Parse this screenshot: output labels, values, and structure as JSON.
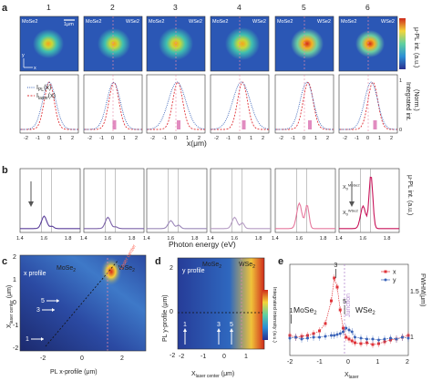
{
  "labels": {
    "a": "a",
    "b": "b",
    "c": "c",
    "d": "d",
    "e": "e"
  },
  "panel_a": {
    "column_numbers": [
      "1",
      "2",
      "3",
      "4",
      "5",
      "6"
    ],
    "material_left": "MoSe",
    "material_right": "WSe",
    "subscript": "2",
    "scalebar": "1μm",
    "axis_y": "y",
    "axis_x": "x",
    "axis_sub": "1",
    "legend_pl": "I",
    "legend_pl_sub": "PL",
    "legend_laser": "I",
    "legend_laser_sub": "laser",
    "legend_arg": "(x)",
    "xlabel": "x(μm)",
    "colorbar_label": "μ-PL int. (a.u.)",
    "profile_label_top": "Integrated int.",
    "profile_label_bot": "(Norm.)",
    "yticks": [
      "1",
      "0"
    ],
    "xticks": [
      "-2",
      "-1",
      "0",
      "1",
      "2"
    ]
  },
  "panel_b": {
    "xlabel": "Photon energy (eV)",
    "ylabel": "μ-PL int. (a.u.)",
    "xticks": [
      "1.4",
      "1.6",
      "1.8"
    ],
    "marker_label_top": "X",
    "marker_label_bot": "X",
    "marker_sub_top": "0",
    "marker_sub_bot": "0",
    "marker_sup_top": "MoSe2",
    "marker_sup_bot": "WSe2",
    "colors": [
      "#5b3f9b",
      "#7d63a9",
      "#9c88b9",
      "#b59cc4",
      "#e6789d",
      "#c8145a"
    ]
  },
  "panel_c": {
    "title": "x profile",
    "material_left": "MoSe",
    "material_right": "WSe",
    "subscript": "2",
    "ylabel": "X",
    "ylabel_sub": "laser center",
    "ylabel_unit": " (μm)",
    "xlabel": "PL x-profile (μm)",
    "laser_center": "Laser center",
    "arrows": [
      "5",
      "3",
      "1"
    ],
    "xticks": [
      "-2",
      "0",
      "2"
    ],
    "yticks": [
      "2",
      "1",
      "0",
      "-1",
      "-2"
    ]
  },
  "panel_d": {
    "title": "y profile",
    "material_left": "MoSe",
    "material_right": "WSe",
    "subscript": "2",
    "ylabel": "PL y-profile (μm)",
    "xlabel": "X",
    "xlabel_sub": "laser center",
    "xlabel_unit": " (μm)",
    "colorbar_label": "Integrated intensity (a.u.)",
    "arrows": [
      "1",
      "3",
      "5"
    ],
    "xticks": [
      "-2",
      "-1",
      "0",
      "1"
    ],
    "yticks": [
      "2",
      "0",
      "-2"
    ]
  },
  "panel_e": {
    "material_left": "MoSe",
    "material_right": "WSe",
    "subscript": "2",
    "junction": "Junction",
    "legend": [
      "x",
      "y"
    ],
    "ylabel": "FWHM(μm)",
    "xlabel": "X",
    "xlabel_sub": "laser",
    "xticks": [
      "-2",
      "-1",
      "0",
      "1",
      "2"
    ],
    "yticks": [
      "1.5",
      "1"
    ],
    "arrow_labels": [
      "1",
      "3",
      "5"
    ],
    "colors": {
      "x": "#e0343a",
      "y": "#3a63b8"
    }
  },
  "chart_data": [
    {
      "type": "line",
      "panel": "e",
      "x": [
        -2,
        -1.8,
        -1.6,
        -1.4,
        -1.2,
        -1.0,
        -0.8,
        -0.6,
        -0.5,
        -0.4,
        -0.3,
        -0.2,
        -0.1,
        0,
        0.1,
        0.2,
        0.4,
        0.6,
        0.8,
        1.0,
        1.2,
        1.4,
        1.6,
        1.8,
        2.0
      ],
      "series": [
        {
          "name": "x",
          "values": [
            1.02,
            1.0,
            1.01,
            1.02,
            1.04,
            1.07,
            1.15,
            1.4,
            1.65,
            1.55,
            1.3,
            1.1,
            1.0,
            0.98,
            0.96,
            0.94,
            0.93,
            0.94,
            0.92,
            0.93,
            0.95,
            0.97,
            0.98,
            1.0,
            1.02
          ]
        },
        {
          "name": "y",
          "values": [
            0.99,
            1.0,
            0.98,
            0.99,
            1.0,
            1.0,
            1.01,
            1.02,
            1.02,
            1.03,
            1.04,
            1.06,
            1.1,
            1.08,
            1.06,
            1.0,
            0.99,
            0.98,
            0.98,
            0.97,
            0.98,
            0.99,
            0.98,
            1.0,
            0.99
          ]
        }
      ],
      "xlabel": "Xlaser",
      "ylabel": "FWHM(μm)",
      "xlim": [
        -2,
        2
      ],
      "ylim": [
        0.8,
        1.8
      ]
    },
    {
      "type": "line",
      "panel": "b",
      "x": [
        1.4,
        1.5,
        1.55,
        1.6,
        1.65,
        1.7,
        1.8,
        1.9
      ],
      "series": [
        {
          "values": [
            0.02,
            0.05,
            0.12,
            0.22,
            0.08,
            0.04,
            0.02,
            0.01
          ]
        },
        {
          "values": [
            0.02,
            0.05,
            0.12,
            0.2,
            0.07,
            0.03,
            0.02,
            0.01
          ]
        },
        {
          "values": [
            0.02,
            0.04,
            0.08,
            0.14,
            0.1,
            0.04,
            0.02,
            0.01
          ]
        },
        {
          "values": [
            0.02,
            0.04,
            0.1,
            0.2,
            0.12,
            0.04,
            0.02,
            0.01
          ]
        },
        {
          "values": [
            0.02,
            0.05,
            0.2,
            0.45,
            0.42,
            0.1,
            0.02,
            0.01
          ]
        },
        {
          "values": [
            0.02,
            0.05,
            0.2,
            0.4,
            0.95,
            0.2,
            0.03,
            0.01
          ]
        }
      ],
      "xlabel": "Photon energy (eV)",
      "ylabel": "μ-PL int. (a.u.)",
      "xlim": [
        1.4,
        1.9
      ]
    }
  ]
}
